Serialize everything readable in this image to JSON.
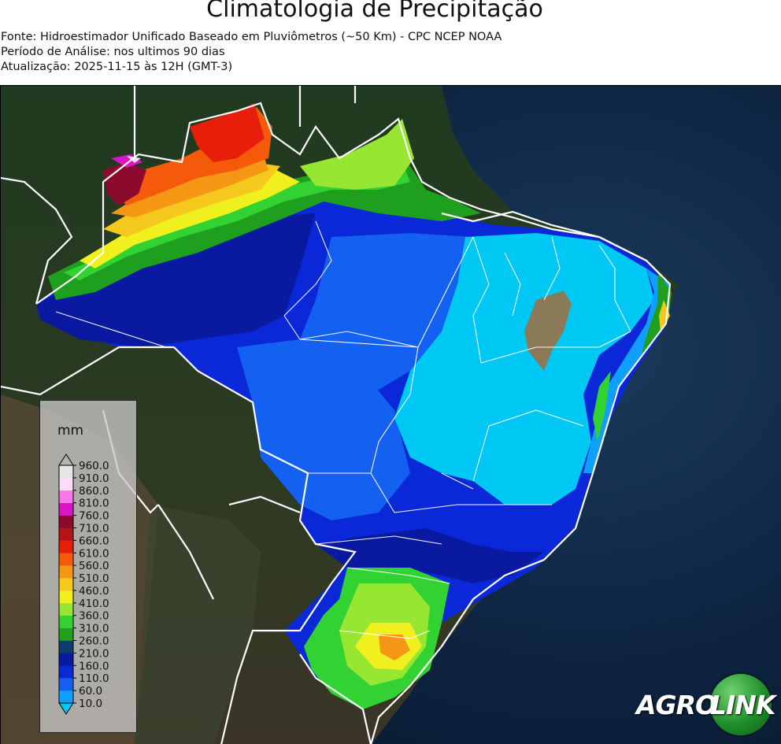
{
  "title": "Climatologia de Precipitação",
  "meta": {
    "source": "Fonte: Hidroestimador Unificado Baseado em Pluviômetros (~50 Km) - CPC NCEP NOAA",
    "period": "Período de Análise: nos ultimos 90 dias",
    "updated": "Atualização: 2025-11-15 às 12H (GMT-3)"
  },
  "legend": {
    "unit": "mm",
    "levels": [
      "10.0",
      "60.0",
      "110.0",
      "160.0",
      "210.0",
      "260.0",
      "310.0",
      "360.0",
      "410.0",
      "460.0",
      "510.0",
      "560.0",
      "610.0",
      "660.0",
      "710.0",
      "760.0",
      "810.0",
      "860.0",
      "910.0",
      "960.0"
    ],
    "colors": [
      "#00c8f5",
      "#0fa0ff",
      "#1460f0",
      "#0a28d8",
      "#0a1aa0",
      "#0e3c6e",
      "#1ea01e",
      "#32d232",
      "#96e632",
      "#f0f01e",
      "#f5c81e",
      "#f59614",
      "#f55a0a",
      "#e61e0a",
      "#b41414",
      "#8c0a2d",
      "#dc14c8",
      "#f578e6",
      "#ffdcf5",
      "#e6e6e6",
      "#b4b4b4"
    ]
  },
  "logo": {
    "agro": "AGRO",
    "link": "LINK"
  }
}
